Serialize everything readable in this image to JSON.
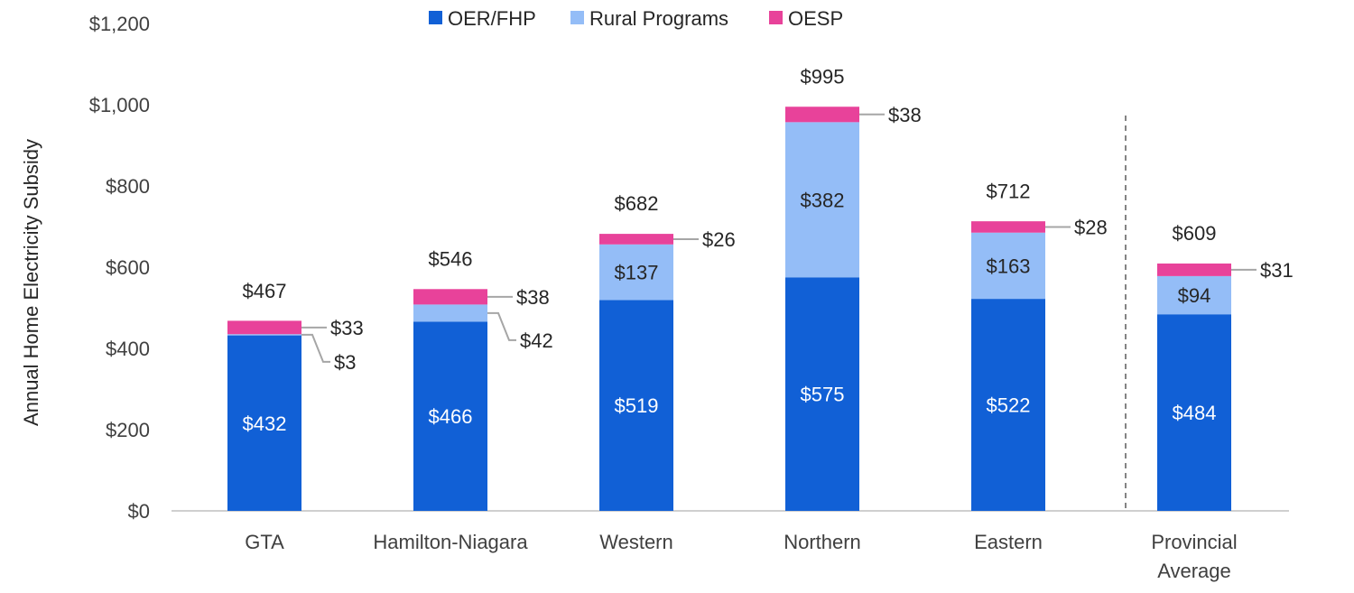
{
  "chart_data": {
    "type": "bar",
    "stacked": true,
    "title": "",
    "xlabel": "",
    "ylabel": "Annual Home Electricity Subsidy",
    "ylim": [
      0,
      1200
    ],
    "yticks": [
      0,
      200,
      400,
      600,
      800,
      1000,
      1200
    ],
    "ytick_labels": [
      "$0",
      "$200",
      "$400",
      "$600",
      "$800",
      "$1,000",
      "$1,200"
    ],
    "categories": [
      [
        "GTA"
      ],
      [
        "Hamilton-Niagara"
      ],
      [
        "Western"
      ],
      [
        "Northern"
      ],
      [
        "Eastern"
      ],
      [
        "Provincial",
        "Average"
      ]
    ],
    "series": [
      {
        "name": "OER/FHP",
        "color": "#1160D6",
        "values": [
          432,
          466,
          519,
          575,
          522,
          484
        ],
        "labels": [
          "$432",
          "$466",
          "$519",
          "$575",
          "$522",
          "$484"
        ]
      },
      {
        "name": "Rural Programs",
        "color": "#94BDF7",
        "values": [
          3,
          42,
          137,
          382,
          163,
          94
        ],
        "labels": [
          "$3",
          "$42",
          "$137",
          "$382",
          "$163",
          "$94"
        ]
      },
      {
        "name": "OESP",
        "color": "#E8429A",
        "values": [
          33,
          38,
          26,
          38,
          28,
          31
        ],
        "labels": [
          "$33",
          "$38",
          "$26",
          "$38",
          "$28",
          "$31"
        ]
      }
    ],
    "totals": [
      467,
      546,
      682,
      995,
      712,
      609
    ],
    "total_labels": [
      "$467",
      "$546",
      "$682",
      "$995",
      "$712",
      "$609"
    ],
    "legend_position": "top-center",
    "grid": false,
    "separator_before_last_category": true
  }
}
